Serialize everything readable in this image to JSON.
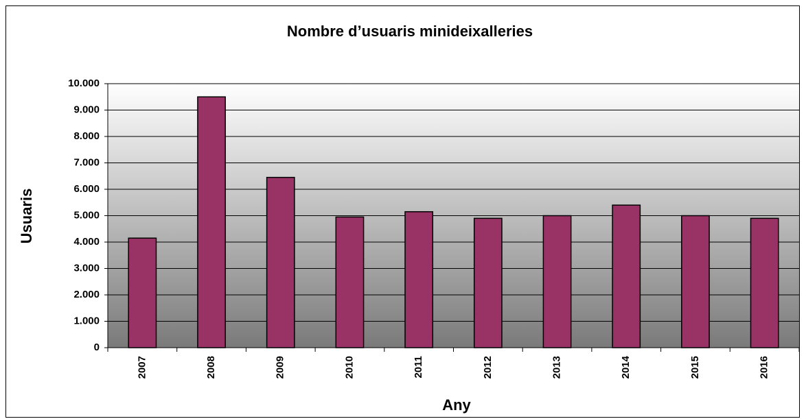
{
  "chart_data": {
    "type": "bar",
    "title": "Nombre d’usuaris minideixalleries",
    "x_label": "Any",
    "y_label": "Usuaris",
    "categories": [
      "2007",
      "2008",
      "2009",
      "2010",
      "2011",
      "2012",
      "2013",
      "2014",
      "2015",
      "2016"
    ],
    "values": [
      4150,
      9500,
      6450,
      4950,
      5150,
      4900,
      5000,
      5400,
      5000,
      4900
    ],
    "color": "#993366",
    "ylim": [
      0,
      10000
    ],
    "yticks": [
      0,
      {
        "value": 1000,
        "label": "1.000"
      },
      {
        "value": 2000,
        "label": "2.000"
      },
      {
        "value": 3000,
        "label": "3.000"
      },
      {
        "value": 4000,
        "label": "4.000"
      },
      {
        "value": 5000,
        "label": "5.000"
      },
      {
        "value": 6000,
        "label": "6.000"
      },
      {
        "value": 7000,
        "label": "7.000"
      },
      {
        "value": 8000,
        "label": "8.000"
      },
      {
        "value": 9000,
        "label": "9.000"
      },
      {
        "value": 10000,
        "label": "10.000"
      }
    ],
    "grid": true
  }
}
